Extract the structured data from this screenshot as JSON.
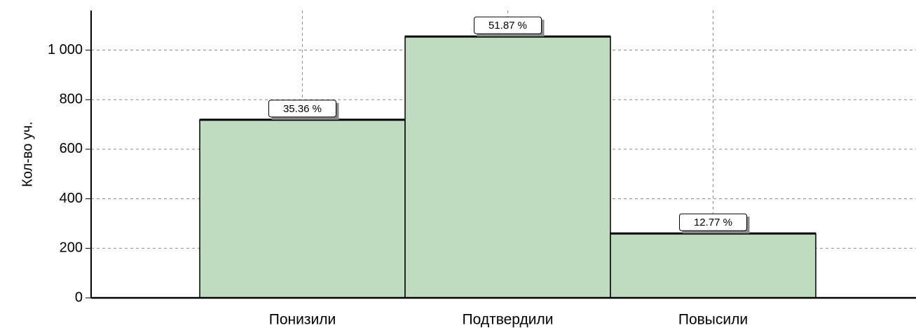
{
  "chart_data": {
    "type": "bar",
    "y_label": "Кол-во уч.",
    "categories": [
      "Понизили",
      "Подтвердили",
      "Повысили"
    ],
    "values": [
      719,
      1055,
      260
    ],
    "percentages": [
      35.36,
      51.87,
      12.77
    ],
    "percentage_labels": [
      "35.36 %",
      "51.87 %",
      "12.77 %"
    ],
    "color": "#c0dcc0",
    "ylim": [
      0,
      1160
    ],
    "yticks": [
      0,
      200,
      400,
      600,
      800,
      {
        "value": 1000,
        "label": "1 000"
      }
    ],
    "grid": true
  }
}
